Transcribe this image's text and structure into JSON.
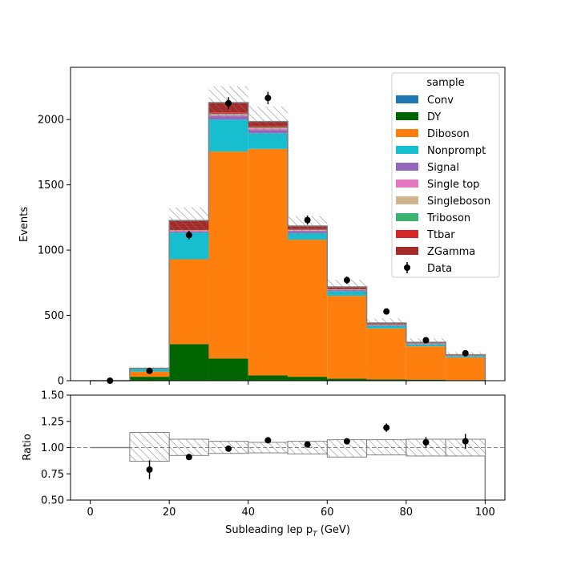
{
  "chart_data": [
    {
      "type": "bar",
      "stacked": true,
      "xlabel": "Subleading lep p",
      "xlabel_sub": "T",
      "xlabel_unit": " (GeV)",
      "ylabel": "Events",
      "xlim": [
        -5,
        105
      ],
      "ylim": [
        0,
        2400
      ],
      "xticks": [
        "0",
        "20",
        "40",
        "60",
        "80",
        "100"
      ],
      "yticks": [
        "0",
        "500",
        "1000",
        "1500",
        "2000"
      ],
      "bin_edges": [
        0,
        10,
        20,
        30,
        40,
        50,
        60,
        70,
        80,
        90,
        100
      ],
      "legend": {
        "title": "sample",
        "placement": "top-right"
      },
      "series": [
        {
          "name": "Conv",
          "color": "#1f77b4",
          "values": [
            0,
            0,
            0,
            0,
            0,
            0,
            0,
            0,
            0,
            0
          ]
        },
        {
          "name": "DY",
          "color": "#006400",
          "values": [
            0,
            30,
            280,
            170,
            40,
            30,
            15,
            10,
            8,
            5
          ]
        },
        {
          "name": "Diboson",
          "color": "#ff7f0e",
          "values": [
            0,
            40,
            650,
            1585,
            1735,
            1050,
            635,
            390,
            255,
            172
          ]
        },
        {
          "name": "Nonprompt",
          "color": "#17becf",
          "values": [
            0,
            20,
            205,
            245,
            120,
            50,
            35,
            20,
            15,
            10
          ]
        },
        {
          "name": "Signal",
          "color": "#9467bd",
          "values": [
            0,
            3,
            8,
            25,
            25,
            15,
            8,
            5,
            3,
            2
          ]
        },
        {
          "name": "Single top",
          "color": "#e377c2",
          "values": [
            0,
            2,
            5,
            10,
            10,
            5,
            3,
            2,
            2,
            1
          ]
        },
        {
          "name": "Singleboson",
          "color": "#d2b48c",
          "values": [
            0,
            0,
            2,
            5,
            5,
            3,
            2,
            1,
            1,
            1
          ]
        },
        {
          "name": "Triboson",
          "color": "#3cb371",
          "values": [
            0,
            0,
            2,
            5,
            5,
            3,
            2,
            2,
            1,
            1
          ]
        },
        {
          "name": "Ttbar",
          "color": "#d62728",
          "values": [
            0,
            0,
            5,
            10,
            10,
            5,
            3,
            2,
            1,
            1
          ]
        },
        {
          "name": "ZGamma",
          "color": "#a52a2a",
          "values": [
            0,
            0,
            70,
            75,
            35,
            24,
            15,
            10,
            8,
            6
          ]
        }
      ],
      "uncertainty": [
        0,
        8,
        100,
        125,
        115,
        75,
        55,
        35,
        30,
        20
      ],
      "data": {
        "name": "Data",
        "x": [
          5,
          15,
          25,
          35,
          45,
          55,
          65,
          75,
          85,
          95
        ],
        "y": [
          0,
          75,
          1115,
          2125,
          2165,
          1230,
          770,
          530,
          310,
          210
        ],
        "err": [
          0,
          9,
          33,
          46,
          47,
          35,
          28,
          23,
          18,
          15
        ]
      }
    },
    {
      "type": "scatter",
      "ylabel": "Ratio",
      "ylim": [
        0.5,
        1.5
      ],
      "yticks": [
        "0.50",
        "0.75",
        "1.00",
        "1.25",
        "1.50"
      ],
      "reference_line": 1.0,
      "ratio_band": {
        "lo": [
          1.0,
          0.87,
          0.925,
          0.945,
          0.95,
          0.94,
          0.91,
          0.93,
          0.92,
          0.92
        ],
        "hi": [
          1.0,
          1.145,
          1.08,
          1.06,
          1.05,
          1.06,
          1.075,
          1.075,
          1.08,
          1.08
        ]
      },
      "points": {
        "x": [
          15,
          25,
          35,
          45,
          55,
          65,
          75,
          85,
          95
        ],
        "y": [
          0.79,
          0.91,
          0.99,
          1.07,
          1.03,
          1.06,
          1.19,
          1.05,
          1.06
        ],
        "err": [
          0.09,
          0.02,
          0.02,
          0.02,
          0.02,
          0.02,
          0.04,
          0.05,
          0.07
        ]
      }
    }
  ]
}
